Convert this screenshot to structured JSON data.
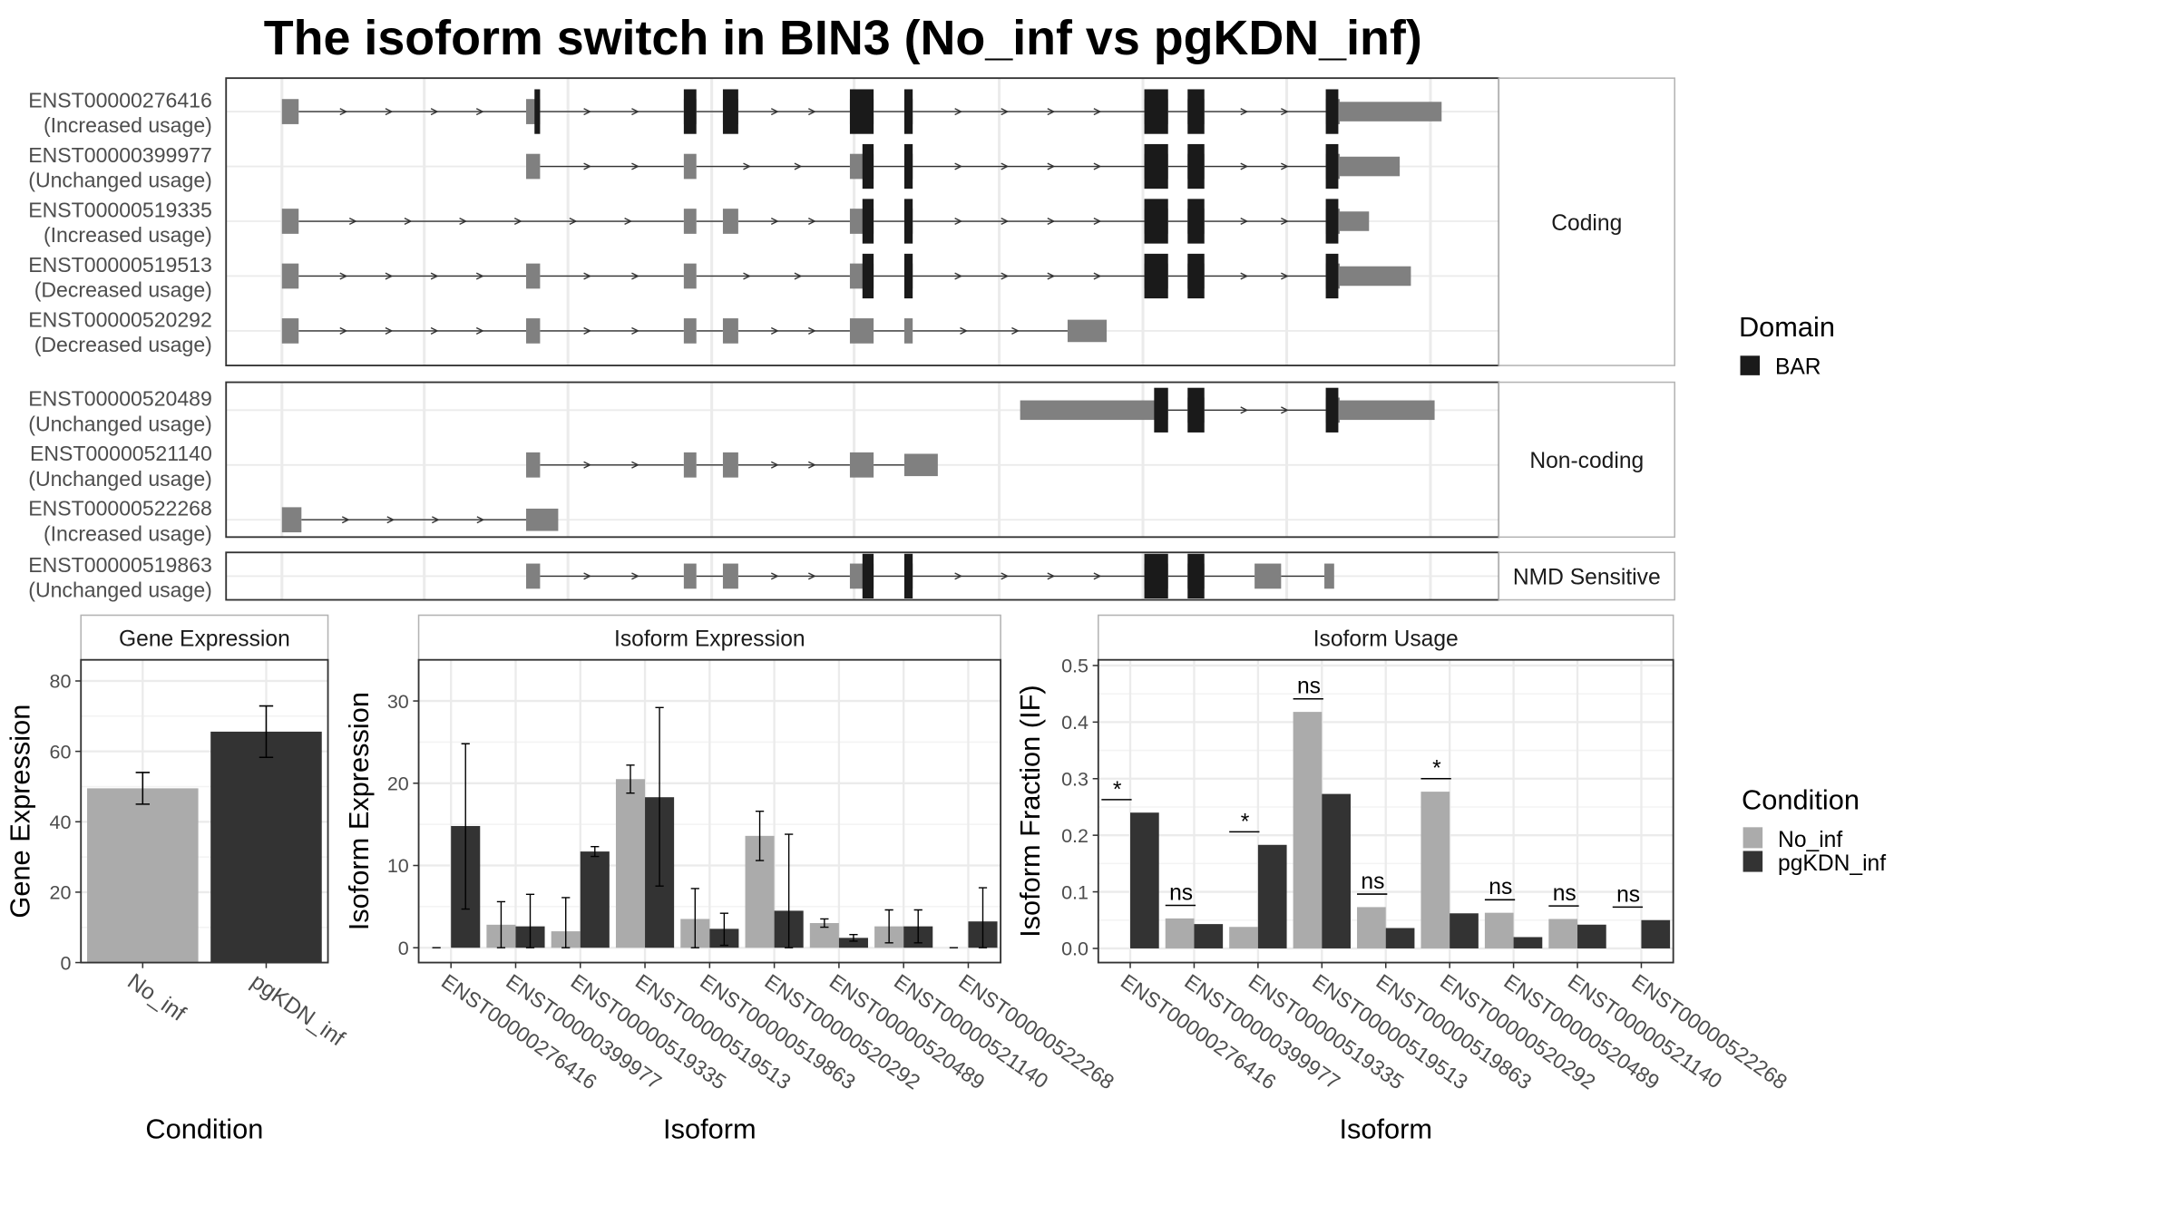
{
  "colors": {
    "domain_bar": "#1a1a1a",
    "exon": "#808080",
    "no_inf": "#ababab",
    "pgkdn_inf": "#333333",
    "panel_border": "#333333",
    "strip_border": "#b3b3b3",
    "grid": "#ebebeb"
  },
  "chart_data": [
    {
      "type": "gene-model",
      "title": "The isoform switch in BIN3 (No_inf vs pgKDN_inf)",
      "legend": {
        "title": "Domain",
        "entries": [
          {
            "label": "BAR",
            "color": "#1a1a1a"
          }
        ],
        "position": "right"
      },
      "gridlines": true,
      "groups": [
        {
          "label": "Coding",
          "transcripts": [
            {
              "id": "ENST00000276416",
              "usage": "(Increased usage)",
              "exons": [
                [
                  202,
                  214
                ],
                [
                  377,
                  387
                ],
                [
                  490,
                  499
                ],
                [
                  518,
                  529
                ],
                [
                  609,
                  626
                ],
                [
                  648,
                  654
                ],
                [
                  820,
                  837
                ],
                [
                  851,
                  863
                ],
                [
                  950,
                  1033
                ]
              ],
              "domains": [
                [
                  383,
                  387
                ],
                [
                  490,
                  499
                ],
                [
                  518,
                  529
                ],
                [
                  609,
                  626
                ],
                [
                  648,
                  654
                ],
                [
                  820,
                  837
                ],
                [
                  851,
                  863
                ],
                [
                  950,
                  959
                ]
              ]
            },
            {
              "id": "ENST00000399977",
              "usage": "(Unchanged usage)",
              "exons": [
                [
                  377,
                  387
                ],
                [
                  490,
                  499
                ],
                [
                  609,
                  626
                ],
                [
                  648,
                  654
                ],
                [
                  820,
                  837
                ],
                [
                  851,
                  863
                ],
                [
                  950,
                  1003
                ]
              ],
              "domains": [
                [
                  618,
                  626
                ],
                [
                  648,
                  654
                ],
                [
                  820,
                  837
                ],
                [
                  851,
                  863
                ],
                [
                  950,
                  959
                ]
              ]
            },
            {
              "id": "ENST00000519335",
              "usage": "(Increased usage)",
              "exons": [
                [
                  202,
                  214
                ],
                [
                  490,
                  499
                ],
                [
                  518,
                  529
                ],
                [
                  609,
                  626
                ],
                [
                  648,
                  654
                ],
                [
                  820,
                  837
                ],
                [
                  851,
                  863
                ],
                [
                  950,
                  981
                ]
              ],
              "domains": [
                [
                  618,
                  626
                ],
                [
                  648,
                  654
                ],
                [
                  820,
                  837
                ],
                [
                  851,
                  863
                ],
                [
                  950,
                  959
                ]
              ]
            },
            {
              "id": "ENST00000519513",
              "usage": "(Decreased usage)",
              "exons": [
                [
                  202,
                  214
                ],
                [
                  377,
                  387
                ],
                [
                  490,
                  499
                ],
                [
                  609,
                  626
                ],
                [
                  648,
                  654
                ],
                [
                  820,
                  837
                ],
                [
                  851,
                  863
                ],
                [
                  950,
                  1011
                ]
              ],
              "domains": [
                [
                  618,
                  626
                ],
                [
                  648,
                  654
                ],
                [
                  820,
                  837
                ],
                [
                  851,
                  863
                ],
                [
                  950,
                  959
                ]
              ]
            },
            {
              "id": "ENST00000520292",
              "usage": "(Decreased usage)",
              "exons": [
                [
                  202,
                  214
                ],
                [
                  377,
                  387
                ],
                [
                  490,
                  499
                ],
                [
                  518,
                  529
                ],
                [
                  609,
                  626
                ],
                [
                  648,
                  654
                ],
                [
                  765,
                  793
                ]
              ],
              "domains": []
            }
          ]
        },
        {
          "label": "Non-coding",
          "transcripts": [
            {
              "id": "ENST00000520489",
              "usage": "(Unchanged usage)",
              "exons": [
                [
                  731,
                  837
                ],
                [
                  851,
                  863
                ],
                [
                  950,
                  1028
                ]
              ],
              "domains": [
                [
                  827,
                  837
                ],
                [
                  851,
                  863
                ],
                [
                  950,
                  959
                ]
              ]
            },
            {
              "id": "ENST00000521140",
              "usage": "(Unchanged usage)",
              "exons": [
                [
                  377,
                  387
                ],
                [
                  490,
                  499
                ],
                [
                  518,
                  529
                ],
                [
                  609,
                  626
                ],
                [
                  648,
                  672
                ]
              ],
              "domains": []
            },
            {
              "id": "ENST00000522268",
              "usage": "(Increased usage)",
              "exons": [
                [
                  202,
                  216
                ],
                [
                  377,
                  400
                ]
              ],
              "domains": []
            }
          ]
        },
        {
          "label": "NMD Sensitive",
          "transcripts": [
            {
              "id": "ENST00000519863",
              "usage": "(Unchanged usage)",
              "exons": [
                [
                  377,
                  387
                ],
                [
                  490,
                  499
                ],
                [
                  518,
                  529
                ],
                [
                  609,
                  626
                ],
                [
                  648,
                  654
                ],
                [
                  820,
                  837
                ],
                [
                  851,
                  863
                ],
                [
                  899,
                  918
                ],
                [
                  949,
                  956
                ]
              ],
              "domains": [
                [
                  618,
                  626
                ],
                [
                  648,
                  654
                ],
                [
                  820,
                  837
                ],
                [
                  851,
                  863
                ]
              ]
            }
          ]
        }
      ]
    },
    {
      "type": "bar",
      "strip": "Gene Expression",
      "xlabel": "Condition",
      "ylabel": "Gene Expression",
      "ylim": [
        0,
        86
      ],
      "yticks": [
        0,
        20,
        40,
        60,
        80
      ],
      "categories": [
        "No_inf",
        "pgKDN_inf"
      ],
      "values": [
        49.5,
        65.6
      ],
      "error_low": [
        45.0,
        58.3
      ],
      "error_high": [
        54.0,
        72.9
      ]
    },
    {
      "type": "bar",
      "strip": "Isoform Expression",
      "xlabel": "Isoform",
      "ylabel": "Isoform Expression",
      "ylim": [
        -1.8,
        35
      ],
      "yticks": [
        0,
        10,
        20,
        30
      ],
      "categories": [
        "ENST00000276416",
        "ENST00000399977",
        "ENST00000519335",
        "ENST00000519513",
        "ENST00000519863",
        "ENST00000520292",
        "ENST00000520489",
        "ENST00000521140",
        "ENST00000522268"
      ],
      "series": [
        {
          "name": "No_inf",
          "values": [
            0,
            2.8,
            2.0,
            20.5,
            3.5,
            13.6,
            3.0,
            2.6,
            0
          ],
          "error_low": [
            0,
            0,
            0,
            18.8,
            0,
            10.6,
            2.5,
            0.6,
            0
          ],
          "error_high": [
            0,
            5.6,
            6.1,
            22.2,
            7.2,
            16.6,
            3.5,
            4.6,
            0
          ]
        },
        {
          "name": "pgKDN_inf",
          "values": [
            14.8,
            2.6,
            11.7,
            18.3,
            2.3,
            4.5,
            1.2,
            2.6,
            3.2
          ],
          "error_low": [
            4.7,
            0,
            11.1,
            7.5,
            0.3,
            0,
            0.8,
            0.6,
            0
          ],
          "error_high": [
            24.8,
            6.5,
            12.3,
            29.2,
            4.2,
            13.8,
            1.6,
            4.6,
            7.3
          ]
        }
      ]
    },
    {
      "type": "bar",
      "strip": "Isoform Usage",
      "xlabel": "Isoform",
      "ylabel": "Isoform Fraction (IF)",
      "ylim": [
        -0.025,
        0.51
      ],
      "yticks": [
        0.0,
        0.1,
        0.2,
        0.3,
        0.4,
        0.5
      ],
      "categories": [
        "ENST00000276416",
        "ENST00000399977",
        "ENST00000519335",
        "ENST00000519513",
        "ENST00000519863",
        "ENST00000520292",
        "ENST00000520489",
        "ENST00000521140",
        "ENST00000522268"
      ],
      "series": [
        {
          "name": "No_inf",
          "values": [
            0,
            0.053,
            0.038,
            0.418,
            0.073,
            0.277,
            0.063,
            0.052,
            0
          ]
        },
        {
          "name": "pgKDN_inf",
          "values": [
            0.24,
            0.043,
            0.183,
            0.273,
            0.036,
            0.062,
            0.02,
            0.042,
            0.05
          ]
        }
      ],
      "significance": [
        "*",
        "ns",
        "*",
        "ns",
        "ns",
        "*",
        "ns",
        "ns",
        "ns"
      ],
      "significance_y": [
        0.263,
        0.076,
        0.206,
        0.441,
        0.096,
        0.3,
        0.086,
        0.075,
        0.073
      ]
    }
  ],
  "condition_legend": {
    "title": "Condition",
    "entries": [
      {
        "label": "No_inf",
        "color": "#ababab"
      },
      {
        "label": "pgKDN_inf",
        "color": "#333333"
      }
    ],
    "position": "right"
  }
}
